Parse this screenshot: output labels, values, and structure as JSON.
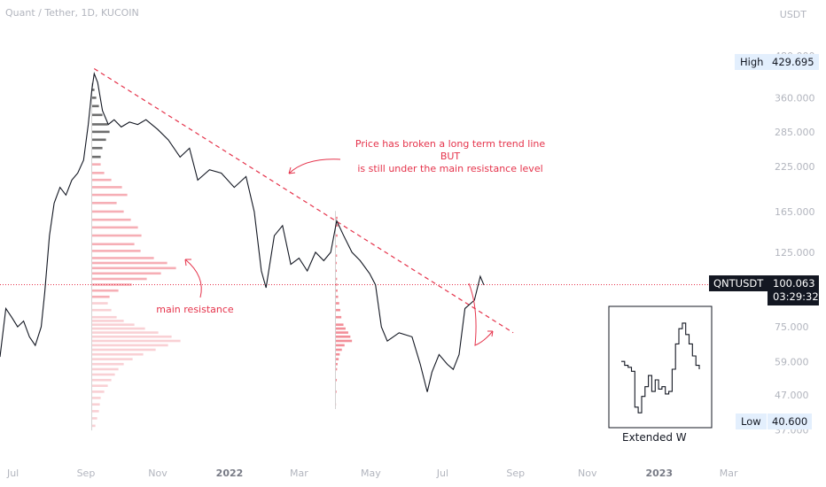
{
  "header": {
    "symbol": "Quant / Tether, 1D, KUCOIN",
    "currency": "USDT"
  },
  "tags": {
    "high_label": "High",
    "high_value": "429.695",
    "low_label": "Low",
    "low_value": "40.600",
    "symbol_box": "QNTUSDT",
    "last_price": "100.063",
    "countdown": "03:29:32"
  },
  "annotations": {
    "note_line1": "Price has broken a long term trend line",
    "note_line2": "BUT",
    "note_line3": "is still under the main resistance level",
    "main_resistance": "main resistance",
    "inset_caption": "Extended W"
  },
  "colors": {
    "price_line": "#131722",
    "trend_line": "#e5334b",
    "annotation": "#e5334b",
    "vp_top_dark": "#555555",
    "vp_upper": "#f5a0a8",
    "vp_lower": "#f8c8cd",
    "vp_second": "#f07a86",
    "current_price_line": "#e5334b"
  },
  "chart_data": {
    "type": "line",
    "title": "Quant / Tether, 1D, KUCOIN",
    "y_scale": "log",
    "ylim": [
      36,
      520
    ],
    "y_ticks": [
      480,
      360,
      285,
      225,
      165,
      125,
      75,
      59,
      47,
      37
    ],
    "y_tick_labels": [
      "480.000",
      "360.000",
      "285.000",
      "225.000",
      "165.000",
      "125.000",
      "75.000",
      "59.000",
      "47.000",
      "37.000"
    ],
    "x_ticks": [
      "Jul",
      "Sep",
      "Nov",
      "2022",
      "Mar",
      "May",
      "Jul",
      "Sep",
      "Nov",
      "2023",
      "Mar"
    ],
    "x_tick_dates": [
      "2021-07-01",
      "2021-09-01",
      "2021-11-01",
      "2022-01-01",
      "2022-03-01",
      "2022-05-01",
      "2022-07-01",
      "2022-09-01",
      "2022-11-01",
      "2023-01-01",
      "2023-03-01"
    ],
    "xlim": [
      "2021-06-20",
      "2023-03-31"
    ],
    "series": [
      {
        "points": [
          [
            "2021-06-20",
            61
          ],
          [
            "2021-06-25",
            85
          ],
          [
            "2021-06-30",
            80
          ],
          [
            "2021-07-05",
            75
          ],
          [
            "2021-07-10",
            78
          ],
          [
            "2021-07-15",
            70
          ],
          [
            "2021-07-20",
            66
          ],
          [
            "2021-07-25",
            75
          ],
          [
            "2021-07-28",
            95
          ],
          [
            "2021-08-01",
            140
          ],
          [
            "2021-08-05",
            175
          ],
          [
            "2021-08-10",
            195
          ],
          [
            "2021-08-15",
            185
          ],
          [
            "2021-08-20",
            205
          ],
          [
            "2021-08-25",
            215
          ],
          [
            "2021-08-30",
            235
          ],
          [
            "2021-09-03",
            300
          ],
          [
            "2021-09-06",
            380
          ],
          [
            "2021-09-08",
            425
          ],
          [
            "2021-09-11",
            400
          ],
          [
            "2021-09-15",
            330
          ],
          [
            "2021-09-20",
            300
          ],
          [
            "2021-09-25",
            310
          ],
          [
            "2021-10-01",
            295
          ],
          [
            "2021-10-08",
            305
          ],
          [
            "2021-10-15",
            300
          ],
          [
            "2021-10-22",
            310
          ],
          [
            "2021-11-01",
            290
          ],
          [
            "2021-11-10",
            270
          ],
          [
            "2021-11-20",
            240
          ],
          [
            "2021-11-28",
            255
          ],
          [
            "2021-12-05",
            205
          ],
          [
            "2021-12-15",
            220
          ],
          [
            "2021-12-25",
            215
          ],
          [
            "2022-01-05",
            195
          ],
          [
            "2022-01-15",
            210
          ],
          [
            "2022-01-22",
            165
          ],
          [
            "2022-01-28",
            110
          ],
          [
            "2022-02-01",
            98
          ],
          [
            "2022-02-08",
            140
          ],
          [
            "2022-02-15",
            150
          ],
          [
            "2022-02-22",
            115
          ],
          [
            "2022-03-01",
            120
          ],
          [
            "2022-03-08",
            110
          ],
          [
            "2022-03-15",
            125
          ],
          [
            "2022-03-22",
            118
          ],
          [
            "2022-03-28",
            125
          ],
          [
            "2022-04-02",
            155
          ],
          [
            "2022-04-08",
            140
          ],
          [
            "2022-04-15",
            125
          ],
          [
            "2022-04-22",
            118
          ],
          [
            "2022-04-30",
            108
          ],
          [
            "2022-05-05",
            100
          ],
          [
            "2022-05-10",
            75
          ],
          [
            "2022-05-15",
            68
          ],
          [
            "2022-05-25",
            72
          ],
          [
            "2022-06-05",
            70
          ],
          [
            "2022-06-12",
            58
          ],
          [
            "2022-06-18",
            48
          ],
          [
            "2022-06-22",
            55
          ],
          [
            "2022-06-28",
            62
          ],
          [
            "2022-07-05",
            58
          ],
          [
            "2022-07-10",
            56
          ],
          [
            "2022-07-15",
            62
          ],
          [
            "2022-07-20",
            85
          ],
          [
            "2022-07-28",
            90
          ],
          [
            "2022-08-02",
            106
          ],
          [
            "2022-08-05",
            100
          ]
        ]
      }
    ],
    "inset_series": {
      "caption": "Extended W",
      "points": [
        [
          0,
          62
        ],
        [
          1,
          60
        ],
        [
          2,
          59
        ],
        [
          3,
          57
        ],
        [
          4,
          42
        ],
        [
          5,
          40
        ],
        [
          6,
          46
        ],
        [
          7,
          50
        ],
        [
          8,
          55
        ],
        [
          9,
          48
        ],
        [
          10,
          53
        ],
        [
          11,
          49
        ],
        [
          12,
          50
        ],
        [
          13,
          47
        ],
        [
          14,
          48
        ],
        [
          15,
          58
        ],
        [
          16,
          72
        ],
        [
          17,
          82
        ],
        [
          18,
          86
        ],
        [
          19,
          78
        ],
        [
          20,
          72
        ],
        [
          21,
          65
        ],
        [
          22,
          60
        ],
        [
          23,
          58
        ]
      ]
    },
    "trend_line": [
      [
        "2021-09-08",
        440
      ],
      [
        "2022-08-30",
        72
      ]
    ],
    "current_price": 100.063,
    "volume_profiles": [
      {
        "anchor_date": "2021-09-06",
        "bins": [
          [
            38,
            0.04
          ],
          [
            40,
            0.06
          ],
          [
            42,
            0.08
          ],
          [
            44,
            0.09
          ],
          [
            46,
            0.1
          ],
          [
            48,
            0.14
          ],
          [
            50,
            0.18
          ],
          [
            52,
            0.22
          ],
          [
            54,
            0.26
          ],
          [
            56,
            0.3
          ],
          [
            58,
            0.36
          ],
          [
            60,
            0.46
          ],
          [
            62,
            0.58
          ],
          [
            64,
            0.72
          ],
          [
            66,
            0.86
          ],
          [
            68,
            1.0
          ],
          [
            70,
            0.9
          ],
          [
            72,
            0.75
          ],
          [
            74,
            0.6
          ],
          [
            76,
            0.48
          ],
          [
            78,
            0.36
          ],
          [
            80,
            0.28
          ],
          [
            84,
            0.22
          ],
          [
            88,
            0.18
          ],
          [
            92,
            0.2
          ],
          [
            96,
            0.3
          ],
          [
            100,
            0.45
          ],
          [
            104,
            0.62
          ],
          [
            108,
            0.78
          ],
          [
            112,
            0.95
          ],
          [
            116,
            0.85
          ],
          [
            120,
            0.7
          ],
          [
            126,
            0.55
          ],
          [
            132,
            0.48
          ],
          [
            140,
            0.56
          ],
          [
            148,
            0.52
          ],
          [
            156,
            0.44
          ],
          [
            165,
            0.36
          ],
          [
            175,
            0.28
          ],
          [
            185,
            0.4
          ],
          [
            195,
            0.34
          ],
          [
            205,
            0.22
          ],
          [
            215,
            0.14
          ],
          [
            228,
            0.1
          ],
          [
            240,
            0.1
          ],
          [
            255,
            0.12
          ],
          [
            270,
            0.16
          ],
          [
            285,
            0.2
          ],
          [
            300,
            0.18
          ],
          [
            320,
            0.12
          ],
          [
            340,
            0.08
          ],
          [
            360,
            0.05
          ],
          [
            380,
            0.03
          ]
        ]
      },
      {
        "anchor_date": "2022-04-01",
        "bins": [
          [
            44,
            0.02
          ],
          [
            48,
            0.04
          ],
          [
            52,
            0.05
          ],
          [
            56,
            0.06
          ],
          [
            58,
            0.08
          ],
          [
            60,
            0.12
          ],
          [
            62,
            0.16
          ],
          [
            64,
            0.24
          ],
          [
            66,
            0.34
          ],
          [
            68,
            0.62
          ],
          [
            70,
            0.56
          ],
          [
            72,
            0.48
          ],
          [
            74,
            0.38
          ],
          [
            76,
            0.3
          ],
          [
            80,
            0.22
          ],
          [
            84,
            0.18
          ],
          [
            88,
            0.14
          ],
          [
            92,
            0.1
          ],
          [
            96,
            0.08
          ],
          [
            100,
            0.07
          ],
          [
            104,
            0.06
          ],
          [
            110,
            0.05
          ],
          [
            116,
            0.05
          ],
          [
            122,
            0.06
          ],
          [
            130,
            0.06
          ],
          [
            140,
            0.08
          ],
          [
            150,
            0.1
          ],
          [
            158,
            0.08
          ]
        ]
      }
    ]
  }
}
